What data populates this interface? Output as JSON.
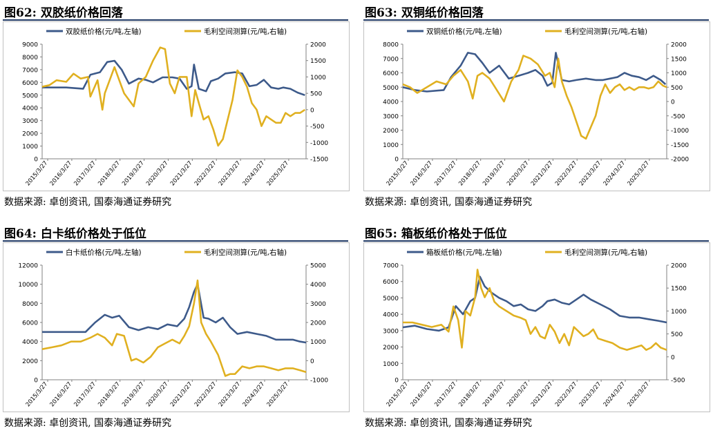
{
  "charts": [
    {
      "title": "图62:  双胶纸价格回落",
      "source": "数据来源:  卓创资讯,  国泰海通证券研究",
      "chart_data": {
        "type": "line",
        "x_ticks": [
          "2015/3/27",
          "2016/3/27",
          "2017/3/27",
          "2018/3/27",
          "2019/3/27",
          "2020/3/27",
          "2021/3/27",
          "2022/3/27",
          "2023/3/27",
          "2024/3/27",
          "2025/3/27"
        ],
        "x_range": [
          2015.0,
          2025.95
        ],
        "y_left": {
          "min": 0,
          "max": 9000,
          "ticks": [
            0,
            1000,
            2000,
            3000,
            4000,
            5000,
            6000,
            7000,
            8000,
            9000
          ]
        },
        "y_right": {
          "min": -1500,
          "max": 2000,
          "ticks": [
            -1500,
            -1000,
            -500,
            0,
            500,
            1000,
            1500,
            2000
          ]
        },
        "series": [
          {
            "name": "双胶纸价格(元/吨,左轴)",
            "axis": "left",
            "color": "#3d5a8a",
            "x": [
              2015.0,
              2015.2,
              2016.0,
              2016.7,
              2017.0,
              2017.4,
              2017.7,
              2018.0,
              2018.3,
              2018.6,
              2019.0,
              2019.3,
              2019.6,
              2020.0,
              2020.4,
              2020.7,
              2021.0,
              2021.2,
              2021.3,
              2021.5,
              2021.8,
              2022.0,
              2022.3,
              2022.6,
              2023.0,
              2023.3,
              2023.6,
              2023.9,
              2024.2,
              2024.5,
              2024.8,
              2025.0,
              2025.3,
              2025.6,
              2025.9
            ],
            "y": [
              5600,
              5600,
              5600,
              5500,
              6600,
              6800,
              7600,
              7700,
              7000,
              5900,
              6300,
              6200,
              6000,
              6400,
              6400,
              6300,
              5500,
              5700,
              7400,
              5500,
              5300,
              6100,
              6300,
              6700,
              6800,
              6700,
              5700,
              5800,
              6200,
              5600,
              5500,
              5600,
              5500,
              5200,
              5000
            ]
          },
          {
            "name": "毛利空间测算(元/吨,右轴)",
            "axis": "right",
            "color": "#e0b020",
            "x": [
              2015.0,
              2015.3,
              2015.6,
              2016.0,
              2016.3,
              2016.6,
              2016.9,
              2017.0,
              2017.3,
              2017.5,
              2017.6,
              2017.8,
              2018.0,
              2018.2,
              2018.4,
              2018.6,
              2018.8,
              2019.0,
              2019.3,
              2019.6,
              2019.9,
              2020.1,
              2020.3,
              2020.5,
              2020.7,
              2021.0,
              2021.2,
              2021.35,
              2021.5,
              2021.7,
              2021.9,
              2022.1,
              2022.3,
              2022.5,
              2022.7,
              2022.9,
              2023.1,
              2023.3,
              2023.5,
              2023.7,
              2023.9,
              2024.1,
              2024.3,
              2024.5,
              2024.7,
              2024.9,
              2025.1,
              2025.3,
              2025.5,
              2025.7,
              2025.9
            ],
            "y": [
              700,
              750,
              900,
              850,
              1100,
              950,
              1000,
              400,
              900,
              0,
              500,
              900,
              1300,
              900,
              500,
              300,
              100,
              800,
              1000,
              1500,
              1900,
              1850,
              800,
              500,
              1000,
              1000,
              -200,
              600,
              200,
              -300,
              -200,
              -600,
              -1100,
              -900,
              -300,
              300,
              1200,
              1000,
              700,
              200,
              0,
              -500,
              -200,
              -300,
              -400,
              -400,
              -100,
              -200,
              -100,
              -100,
              0
            ]
          }
        ]
      }
    },
    {
      "title": "图63:  双铜纸价格回落",
      "source": "数据来源:  卓创资讯,  国泰海通证券研究",
      "chart_data": {
        "type": "line",
        "x_ticks": [
          "2015/3/27",
          "2016/3/27",
          "2017/3/27",
          "2018/3/27",
          "2019/3/27",
          "2020/3/27",
          "2021/3/27",
          "2022/3/27",
          "2023/3/27",
          "2024/3/27",
          "2025/3/27"
        ],
        "x_range": [
          2015.0,
          2025.95
        ],
        "y_left": {
          "min": 0,
          "max": 8000,
          "ticks": [
            0,
            1000,
            2000,
            3000,
            4000,
            5000,
            6000,
            7000,
            8000
          ]
        },
        "y_right": {
          "min": -2000,
          "max": 2000,
          "ticks": [
            -2000,
            -1500,
            -1000,
            -500,
            0,
            500,
            1000,
            1500,
            2000
          ]
        },
        "series": [
          {
            "name": "双铜纸价格(元/吨,左轴)",
            "axis": "left",
            "color": "#3d5a8a",
            "x": [
              2015.0,
              2015.5,
              2016.0,
              2016.7,
              2017.0,
              2017.4,
              2017.7,
              2018.0,
              2018.3,
              2018.6,
              2019.0,
              2019.4,
              2019.8,
              2020.2,
              2020.5,
              2020.8,
              2021.0,
              2021.2,
              2021.35,
              2021.6,
              2021.9,
              2022.2,
              2022.6,
              2023.0,
              2023.3,
              2023.6,
              2023.9,
              2024.2,
              2024.5,
              2024.8,
              2025.1,
              2025.4,
              2025.7,
              2025.9
            ],
            "y": [
              5000,
              4800,
              4700,
              4800,
              5700,
              6500,
              7400,
              7300,
              6700,
              6000,
              6500,
              5600,
              5800,
              6000,
              6200,
              5800,
              5100,
              5300,
              7400,
              5500,
              5400,
              5500,
              5600,
              5500,
              5500,
              5600,
              5700,
              6000,
              5800,
              5700,
              5500,
              5800,
              5500,
              5200
            ]
          },
          {
            "name": "毛利空间测算(元/吨,右轴)",
            "axis": "right",
            "color": "#e0b020",
            "x": [
              2015.0,
              2015.3,
              2015.6,
              2016.0,
              2016.4,
              2016.8,
              2017.1,
              2017.4,
              2017.7,
              2017.9,
              2018.1,
              2018.3,
              2018.6,
              2018.9,
              2019.2,
              2019.5,
              2019.8,
              2020.0,
              2020.3,
              2020.6,
              2020.9,
              2021.1,
              2021.3,
              2021.45,
              2021.6,
              2021.8,
              2022.0,
              2022.2,
              2022.4,
              2022.6,
              2022.8,
              2023.0,
              2023.2,
              2023.4,
              2023.6,
              2023.8,
              2024.0,
              2024.2,
              2024.4,
              2024.6,
              2024.8,
              2025.0,
              2025.2,
              2025.4,
              2025.6,
              2025.8,
              2025.95
            ],
            "y": [
              600,
              500,
              300,
              500,
              700,
              600,
              900,
              1100,
              700,
              100,
              900,
              1000,
              800,
              400,
              0,
              700,
              1100,
              1600,
              1500,
              1300,
              900,
              1000,
              500,
              1500,
              700,
              200,
              -200,
              -700,
              -1200,
              -1300,
              -900,
              -500,
              200,
              600,
              300,
              500,
              600,
              400,
              500,
              400,
              500,
              500,
              450,
              500,
              700,
              550,
              500
            ]
          }
        ]
      }
    },
    {
      "title": "图64:  白卡纸价格处于低位",
      "source": "数据来源:  卓创资讯,  国泰海通证券研究",
      "chart_data": {
        "type": "line",
        "x_ticks": [
          "2015/3/27",
          "2016/3/27",
          "2017/3/27",
          "2018/3/27",
          "2019/3/27",
          "2020/3/27",
          "2021/3/27",
          "2022/3/27",
          "2023/3/27",
          "2024/3/27",
          "2025/3/27"
        ],
        "x_range": [
          2015.0,
          2025.95
        ],
        "y_left": {
          "min": 0,
          "max": 12000,
          "ticks": [
            0,
            2000,
            4000,
            6000,
            8000,
            10000,
            12000
          ]
        },
        "y_right": {
          "min": -1000,
          "max": 5000,
          "ticks": [
            -1000,
            0,
            1000,
            2000,
            3000,
            4000,
            5000
          ]
        },
        "series": [
          {
            "name": "白卡纸价格(元/吨,左轴)",
            "axis": "left",
            "color": "#3d5a8a",
            "x": [
              2015.0,
              2015.6,
              2016.2,
              2016.8,
              2017.2,
              2017.6,
              2017.9,
              2018.2,
              2018.6,
              2019.0,
              2019.4,
              2019.8,
              2020.2,
              2020.6,
              2020.9,
              2021.1,
              2021.3,
              2021.45,
              2021.7,
              2021.9,
              2022.2,
              2022.5,
              2022.8,
              2023.1,
              2023.5,
              2023.9,
              2024.3,
              2024.7,
              2025.0,
              2025.4,
              2025.7,
              2025.95
            ],
            "y": [
              5000,
              5000,
              5000,
              5000,
              6000,
              6800,
              6500,
              6700,
              5500,
              5200,
              5500,
              5300,
              5800,
              5600,
              6400,
              7600,
              9200,
              10000,
              6500,
              6400,
              6000,
              6500,
              5500,
              4800,
              5000,
              4800,
              4600,
              4200,
              4200,
              4200,
              4000,
              3900
            ]
          },
          {
            "name": "毛利空间测算(元/吨,右轴)",
            "axis": "right",
            "color": "#e0b020",
            "x": [
              2015.0,
              2015.4,
              2015.8,
              2016.2,
              2016.6,
              2017.0,
              2017.3,
              2017.6,
              2017.9,
              2018.1,
              2018.4,
              2018.7,
              2018.9,
              2019.2,
              2019.5,
              2019.8,
              2020.1,
              2020.4,
              2020.7,
              2020.9,
              2021.1,
              2021.3,
              2021.45,
              2021.6,
              2021.8,
              2022.0,
              2022.3,
              2022.6,
              2022.8,
              2023.0,
              2023.3,
              2023.6,
              2023.9,
              2024.2,
              2024.5,
              2024.8,
              2025.1,
              2025.4,
              2025.7,
              2025.95
            ],
            "y": [
              600,
              700,
              800,
              1000,
              1000,
              1200,
              1400,
              1200,
              800,
              1400,
              1300,
              0,
              100,
              -100,
              200,
              700,
              900,
              1100,
              900,
              1300,
              1800,
              3000,
              4200,
              2000,
              1400,
              1000,
              300,
              -800,
              -700,
              -700,
              -300,
              -400,
              -300,
              -300,
              -400,
              -500,
              -400,
              -400,
              -500,
              -600
            ]
          }
        ]
      }
    },
    {
      "title": "图65:  箱板纸价格处于低位",
      "source": "数据来源:  卓创资讯,  国泰海通证券研究",
      "chart_data": {
        "type": "line",
        "x_ticks": [
          "2015/3/27",
          "2016/3/27",
          "2017/3/27",
          "2018/3/27",
          "2019/3/27",
          "2020/3/27",
          "2021/3/27",
          "2022/3/27",
          "2023/3/27",
          "2024/3/27",
          "2025/3/27"
        ],
        "x_range": [
          2015.0,
          2025.95
        ],
        "y_left": {
          "min": 0,
          "max": 7000,
          "ticks": [
            0,
            1000,
            2000,
            3000,
            4000,
            5000,
            6000,
            7000
          ]
        },
        "y_right": {
          "min": -500,
          "max": 2000,
          "ticks": [
            -500,
            0,
            500,
            1000,
            1500,
            2000
          ]
        },
        "series": [
          {
            "name": "箱板纸价格(元/吨,左轴)",
            "axis": "left",
            "color": "#3d5a8a",
            "x": [
              2015.0,
              2015.5,
              2016.0,
              2016.5,
              2016.9,
              2017.2,
              2017.5,
              2017.8,
              2018.0,
              2018.2,
              2018.4,
              2018.7,
              2019.0,
              2019.3,
              2019.6,
              2019.9,
              2020.2,
              2020.5,
              2020.8,
              2021.0,
              2021.3,
              2021.6,
              2021.9,
              2022.2,
              2022.5,
              2022.8,
              2023.2,
              2023.6,
              2024.0,
              2024.4,
              2024.8,
              2025.2,
              2025.6,
              2025.95
            ],
            "y": [
              3200,
              3300,
              3100,
              3000,
              3200,
              4500,
              4000,
              4800,
              5000,
              6300,
              5700,
              5300,
              5000,
              4800,
              4500,
              4600,
              4300,
              4200,
              4500,
              4800,
              4900,
              4700,
              4600,
              4900,
              5200,
              4900,
              4600,
              4300,
              3900,
              3800,
              3800,
              3700,
              3600,
              3500
            ]
          },
          {
            "name": "毛利空间测算(元/吨,右轴)",
            "axis": "right",
            "color": "#e0b020",
            "x": [
              2015.0,
              2015.4,
              2015.8,
              2016.2,
              2016.6,
              2016.9,
              2017.1,
              2017.3,
              2017.45,
              2017.6,
              2017.8,
              2018.0,
              2018.1,
              2018.25,
              2018.4,
              2018.6,
              2018.8,
              2019.0,
              2019.3,
              2019.6,
              2019.9,
              2020.1,
              2020.3,
              2020.5,
              2020.7,
              2020.9,
              2021.1,
              2021.3,
              2021.5,
              2021.7,
              2021.9,
              2022.1,
              2022.3,
              2022.5,
              2022.7,
              2022.9,
              2023.1,
              2023.4,
              2023.7,
              2024.0,
              2024.3,
              2024.6,
              2024.9,
              2025.1,
              2025.3,
              2025.5,
              2025.7,
              2025.95
            ],
            "y": [
              750,
              750,
              700,
              650,
              700,
              550,
              1100,
              800,
              200,
              1000,
              900,
              1300,
              1900,
              1500,
              1300,
              1500,
              1200,
              1100,
              1000,
              900,
              850,
              800,
              500,
              650,
              450,
              400,
              700,
              550,
              300,
              500,
              250,
              650,
              550,
              450,
              500,
              600,
              400,
              350,
              300,
              200,
              150,
              200,
              250,
              150,
              200,
              300,
              200,
              150
            ]
          }
        ]
      }
    }
  ]
}
